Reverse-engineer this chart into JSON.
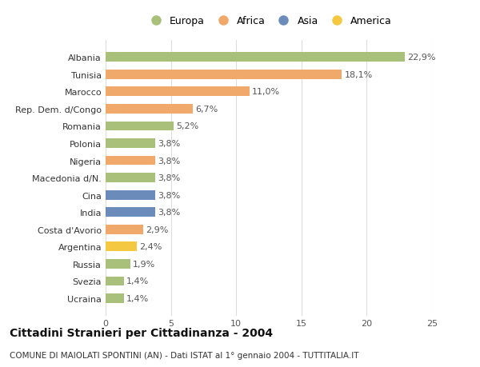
{
  "countries": [
    "Albania",
    "Tunisia",
    "Marocco",
    "Rep. Dem. d/Congo",
    "Romania",
    "Polonia",
    "Nigeria",
    "Macedonia d/N.",
    "Cina",
    "India",
    "Costa d'Avorio",
    "Argentina",
    "Russia",
    "Svezia",
    "Ucraina"
  ],
  "values": [
    22.9,
    18.1,
    11.0,
    6.7,
    5.2,
    3.8,
    3.8,
    3.8,
    3.8,
    3.8,
    2.9,
    2.4,
    1.9,
    1.4,
    1.4
  ],
  "labels": [
    "22,9%",
    "18,1%",
    "11,0%",
    "6,7%",
    "5,2%",
    "3,8%",
    "3,8%",
    "3,8%",
    "3,8%",
    "3,8%",
    "2,9%",
    "2,4%",
    "1,9%",
    "1,4%",
    "1,4%"
  ],
  "continents": [
    "Europa",
    "Africa",
    "Africa",
    "Africa",
    "Europa",
    "Europa",
    "Africa",
    "Europa",
    "Asia",
    "Asia",
    "Africa",
    "America",
    "Europa",
    "Europa",
    "Europa"
  ],
  "colors": {
    "Europa": "#a8c07a",
    "Africa": "#f0a96a",
    "Asia": "#6b8cba",
    "America": "#f5c842"
  },
  "legend_order": [
    "Europa",
    "Africa",
    "Asia",
    "America"
  ],
  "title": "Cittadini Stranieri per Cittadinanza - 2004",
  "subtitle": "COMUNE DI MAIOLATI SPONTINI (AN) - Dati ISTAT al 1° gennaio 2004 - TUTTITALIA.IT",
  "xlim": [
    0,
    25
  ],
  "xticks": [
    0,
    5,
    10,
    15,
    20,
    25
  ],
  "bg_color": "#ffffff",
  "grid_color": "#dddddd",
  "bar_height": 0.55,
  "label_fontsize": 8,
  "tick_fontsize": 8,
  "title_fontsize": 10,
  "subtitle_fontsize": 7.5
}
